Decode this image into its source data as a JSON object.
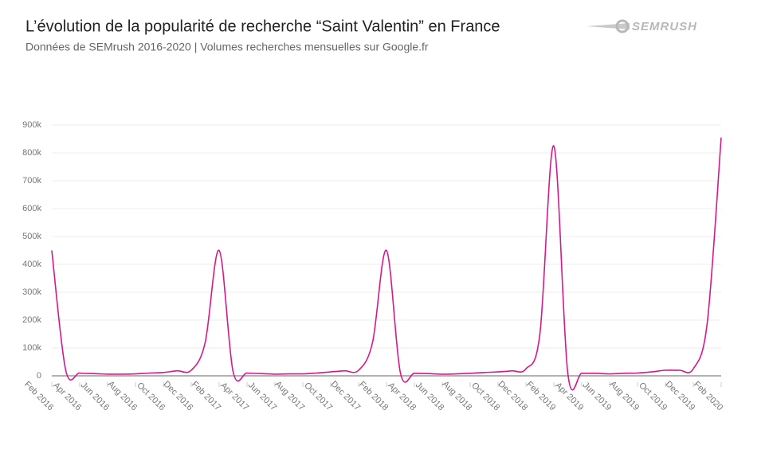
{
  "logo": "SEMRUSH",
  "chart_data": {
    "type": "line",
    "title": "L’évolution de la popularité de recherche “Saint Valentin” en France",
    "subtitle": "Données de SEMrush 2016-2020 | Volumes recherches mensuelles sur Google.fr",
    "categories": [
      "Feb 2016",
      null,
      "Apr 2016",
      null,
      "Jun 2016",
      null,
      "Aug 2016",
      null,
      "Oct 2016",
      null,
      "Dec 2016",
      null,
      "Feb 2017",
      null,
      "Apr 2017",
      null,
      "Jun 2017",
      null,
      "Aug 2017",
      null,
      "Oct 2017",
      null,
      "Dec 2017",
      null,
      "Feb 2018",
      null,
      "Apr 2018",
      null,
      "Jun 2018",
      null,
      "Aug 2018",
      null,
      "Oct 2018",
      null,
      "Dec 2018",
      null,
      "Feb 2019",
      null,
      "Apr 2019",
      null,
      "Jun 2019",
      null,
      "Aug 2019",
      null,
      "Oct 2019",
      null,
      "Dec 2019",
      null,
      "Feb 2020"
    ],
    "series": [
      {
        "name": "Saint Valentin",
        "color": "#d6188c",
        "values": [
          450000,
          20000,
          10000,
          8000,
          6000,
          6000,
          7000,
          10000,
          12000,
          18000,
          20000,
          120000,
          450000,
          15000,
          10000,
          8000,
          6000,
          7000,
          7000,
          10000,
          14000,
          18000,
          20000,
          120000,
          450000,
          10000,
          9000,
          8000,
          6000,
          7000,
          9000,
          12000,
          14000,
          18000,
          25000,
          150000,
          825000,
          10000,
          9000,
          9000,
          7000,
          9000,
          10000,
          14000,
          20000,
          20000,
          25000,
          190000,
          855000
        ]
      }
    ],
    "ylim": [
      0,
      900000
    ],
    "yticks": [
      0,
      {
        "value": 100000,
        "label": "100k"
      },
      {
        "value": 200000,
        "label": "200k"
      },
      {
        "value": 300000,
        "label": "300k"
      },
      {
        "value": 400000,
        "label": "400k"
      },
      {
        "value": 500000,
        "label": "500k"
      },
      {
        "value": 600000,
        "label": "600k"
      },
      {
        "value": 700000,
        "label": "700k"
      },
      {
        "value": 800000,
        "label": "800k"
      },
      {
        "value": 900000,
        "label": "900k"
      }
    ],
    "grid": true
  }
}
